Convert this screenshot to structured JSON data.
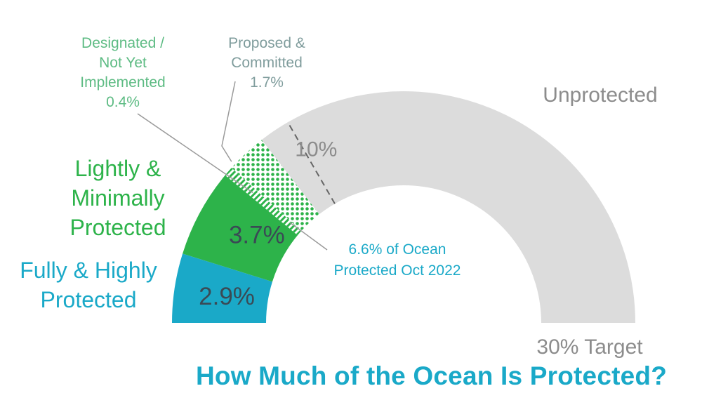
{
  "chart_data": {
    "type": "pie",
    "variant": "half-donut",
    "title": "How Much of the Ocean Is Protected?",
    "total": 30,
    "segments": [
      {
        "name": "Fully & Highly Protected",
        "label_lines": [
          "Fully & Highly",
          "Protected"
        ],
        "value": 2.9,
        "value_label": "2.9%",
        "color": "#1aa9c8",
        "fill": "solid"
      },
      {
        "name": "Lightly & Minimally Protected",
        "label_lines": [
          "Lightly &",
          "Minimally",
          "Protected"
        ],
        "value": 3.7,
        "value_label": "3.7%",
        "color": "#2db34a",
        "fill": "solid"
      },
      {
        "name": "Designated / Not Yet Implemented",
        "label_lines": [
          "Designated /",
          "Not Yet",
          "Implemented",
          "0.4%"
        ],
        "value": 0.4,
        "color": "#2db34a",
        "fill": "hatch"
      },
      {
        "name": "Proposed & Committed",
        "label_lines": [
          "Proposed &",
          "Committed",
          "1.7%"
        ],
        "value": 1.7,
        "color": "#2db34a",
        "fill": "dots"
      },
      {
        "name": "Unprotected",
        "label_lines": [
          "Unprotected"
        ],
        "value": 21.3,
        "color": "#dcdcdc",
        "fill": "solid"
      }
    ],
    "markers": [
      {
        "value": 10,
        "label": "10%",
        "style": "dashed"
      }
    ],
    "annotations": {
      "protected_total_lines": [
        "6.6% of Ocean",
        "Protected Oct 2022"
      ],
      "target": "30% Target"
    },
    "colors": {
      "title": "#1aa9c8",
      "fully": "#1aa9c8",
      "lightly": "#2db34a",
      "designated_label": "#5dbb83",
      "proposed_label": "#7f9c9c",
      "gray_text": "#8c8c8c",
      "value_text": "#3a4a55",
      "unprotected": "#dcdcdc",
      "leader": "#9a9a9a"
    }
  }
}
